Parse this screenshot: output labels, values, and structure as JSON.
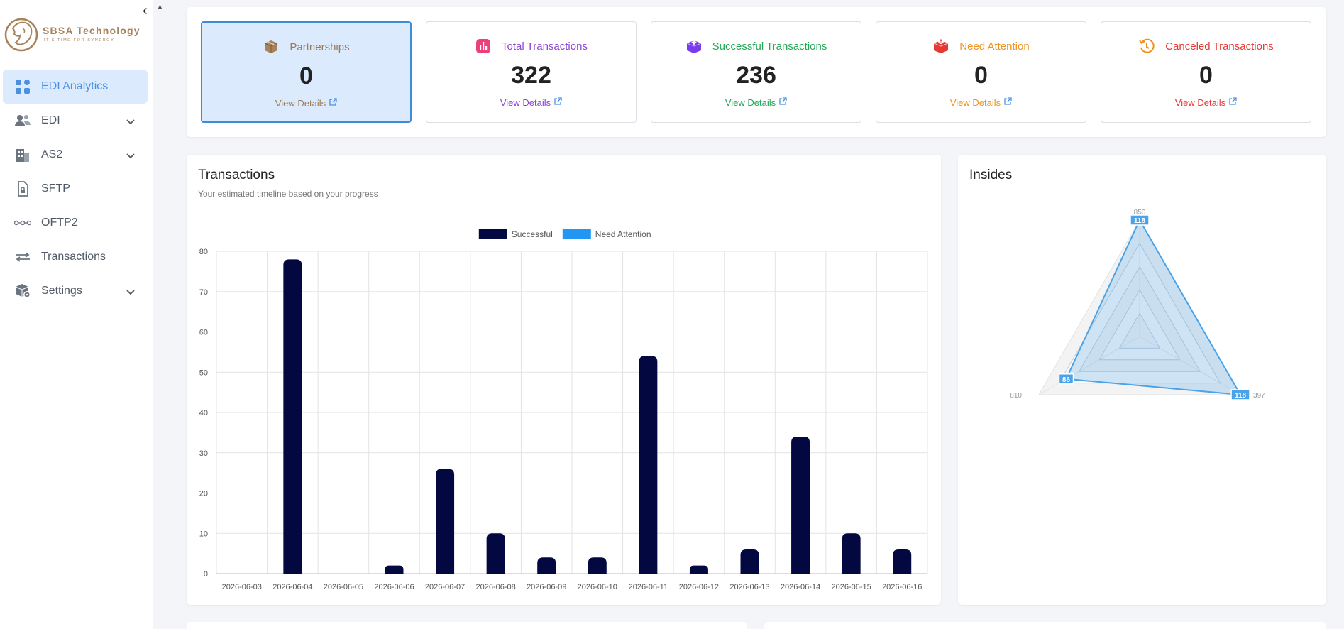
{
  "brand": {
    "name": "SBSA Technology",
    "tagline": "IT'S TIME FOR SYNERGY",
    "color": "#a8825a"
  },
  "sidebar": {
    "items": [
      {
        "label": "EDI Analytics",
        "icon": "grid-icon",
        "active": true,
        "has_submenu": false
      },
      {
        "label": "EDI",
        "icon": "users-icon",
        "active": false,
        "has_submenu": true
      },
      {
        "label": "AS2",
        "icon": "building-icon",
        "active": false,
        "has_submenu": true
      },
      {
        "label": "SFTP",
        "icon": "file-lock-icon",
        "active": false,
        "has_submenu": false
      },
      {
        "label": "OFTP2",
        "icon": "link-nodes-icon",
        "active": false,
        "has_submenu": false
      },
      {
        "label": "Transactions",
        "icon": "arrows-left-right-icon",
        "active": false,
        "has_submenu": false
      },
      {
        "label": "Settings",
        "icon": "box-gear-icon",
        "active": false,
        "has_submenu": true
      }
    ]
  },
  "stats": [
    {
      "title": "Partnerships",
      "value": "0",
      "link": "View Details",
      "color": "#9c7a55",
      "icon": "package-icon",
      "active": true
    },
    {
      "title": "Total Transactions",
      "value": "322",
      "link": "View Details",
      "color": "#8e44d6",
      "icon": "bar-chart-icon",
      "active": false
    },
    {
      "title": "Successful Transactions",
      "value": "236",
      "link": "View Details",
      "color": "#22a855",
      "icon": "box-down-icon",
      "active": false
    },
    {
      "title": "Need Attention",
      "value": "0",
      "link": "View Details",
      "color": "#f0921e",
      "icon": "alert-box-icon",
      "active": false
    },
    {
      "title": "Canceled Transactions",
      "value": "0",
      "link": "View Details",
      "color": "#e53935",
      "icon": "undo-clock-icon",
      "active": false
    }
  ],
  "transactions_card": {
    "title": "Transactions",
    "subtitle": "Your estimated timeline based on your progress"
  },
  "insides_card": {
    "title": "Insides"
  },
  "chart_data": [
    {
      "type": "bar",
      "title": "",
      "xlabel": "",
      "ylabel": "",
      "categories": [
        "2026-06-03",
        "2026-06-04",
        "2026-06-05",
        "2026-06-06",
        "2026-06-07",
        "2026-06-08",
        "2026-06-09",
        "2026-06-10",
        "2026-06-11",
        "2026-06-12",
        "2026-06-13",
        "2026-06-14",
        "2026-06-15",
        "2026-06-16"
      ],
      "series": [
        {
          "name": "Successful",
          "color": "#040840",
          "values": [
            0,
            78,
            0,
            2,
            26,
            10,
            4,
            4,
            54,
            2,
            6,
            34,
            10,
            6
          ]
        },
        {
          "name": "Need Attention",
          "color": "#2196f3",
          "values": [
            0,
            0,
            0,
            0,
            0,
            0,
            0,
            0,
            0,
            0,
            0,
            0,
            0,
            0
          ]
        }
      ],
      "ylim": [
        0,
        80
      ],
      "yticks": [
        0,
        10,
        20,
        30,
        40,
        50,
        60,
        70,
        80
      ],
      "grid": true,
      "legend": "top-center"
    },
    {
      "type": "radar",
      "axes": [
        "850",
        "397",
        "810"
      ],
      "values": [
        118,
        118,
        86
      ],
      "scale_max": 118,
      "grid_levels": 5,
      "color": "#4aa3e8",
      "legend": "none"
    }
  ]
}
